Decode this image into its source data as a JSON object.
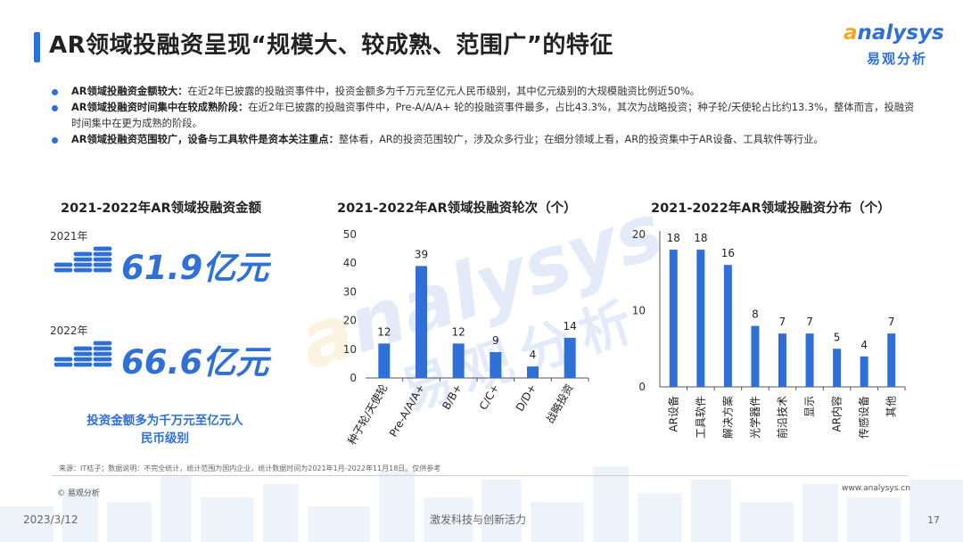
{
  "title": "AR领域投融资呈现“规模大、较成熟、范围广”的特征",
  "logo": {
    "word_first": "a",
    "word_rest": "nalysys",
    "sub": "易观分析"
  },
  "bullets": [
    {
      "bold": "AR领域投融资金额较大：",
      "text": "在近2年已披露的投融资事件中，投资金额多为千万元至亿元人民币级别，其中亿元级别的大规模融资比例近50%。"
    },
    {
      "bold": "AR领域投融资时间集中在较成熟阶段：",
      "text": "在近2年已披露的投融资事件中，Pre-A/A/A+ 轮的投融资事件最多，占比43.3%，其次为战略投资；种子轮/天使轮占比约13.3%，整体而言，投融资时间集中在更为成熟的阶段。"
    },
    {
      "bold": "AR领域投融资范围较广，设备与工具软件是资本关注重点：",
      "text": "整体看，AR的投资范围较广，涉及众多行业；在细分领域上看，AR的投资集中于AR设备、工具软件等行业。"
    }
  ],
  "amount_panel": {
    "title": "2021-2022年AR领域投融资金额",
    "rows": [
      {
        "year": "2021年",
        "amount": "61.9亿元"
      },
      {
        "year": "2022年",
        "amount": "66.6亿元"
      }
    ],
    "note": "投资金额多为千万元至亿元人民币级别"
  },
  "chart_data": [
    {
      "type": "bar",
      "title": "2021-2022年AR领域投融资轮次（个）",
      "categories": [
        "种子轮/天使轮",
        "Pre-A/A/A+",
        "B/B+",
        "C/C+",
        "D/D+",
        "战略投资"
      ],
      "values": [
        12,
        39,
        12,
        9,
        4,
        14
      ],
      "ylim": [
        0,
        50
      ],
      "yticks": [
        0,
        10,
        20,
        30,
        40,
        50
      ],
      "color": "#2f6fd8"
    },
    {
      "type": "bar",
      "title": "2021-2022年AR领域投融资分布（个）",
      "categories": [
        "AR设备",
        "工具软件",
        "解决方案",
        "光学器件",
        "前沿技术",
        "显示",
        "AR内容",
        "传感设备",
        "其他"
      ],
      "values": [
        18,
        18,
        16,
        8,
        7,
        7,
        5,
        4,
        7
      ],
      "ylim": [
        0,
        20
      ],
      "yticks": [
        0,
        10,
        20
      ],
      "color": "#2f6fd8"
    }
  ],
  "watermark": {
    "word_first": "a",
    "word_rest": "nalysys",
    "sub": "易观分析"
  },
  "footer": {
    "source": "来源：IT桔子；数据说明：不完全统计，统计范围为国内企业，统计数据时间为2021年1月-2022年11月18日。仅供参考",
    "copyright": "© 易观分析",
    "website": "www.analysys.cn",
    "date": "2023/3/12",
    "slogan": "激发科技与创新活力",
    "page": "17"
  }
}
